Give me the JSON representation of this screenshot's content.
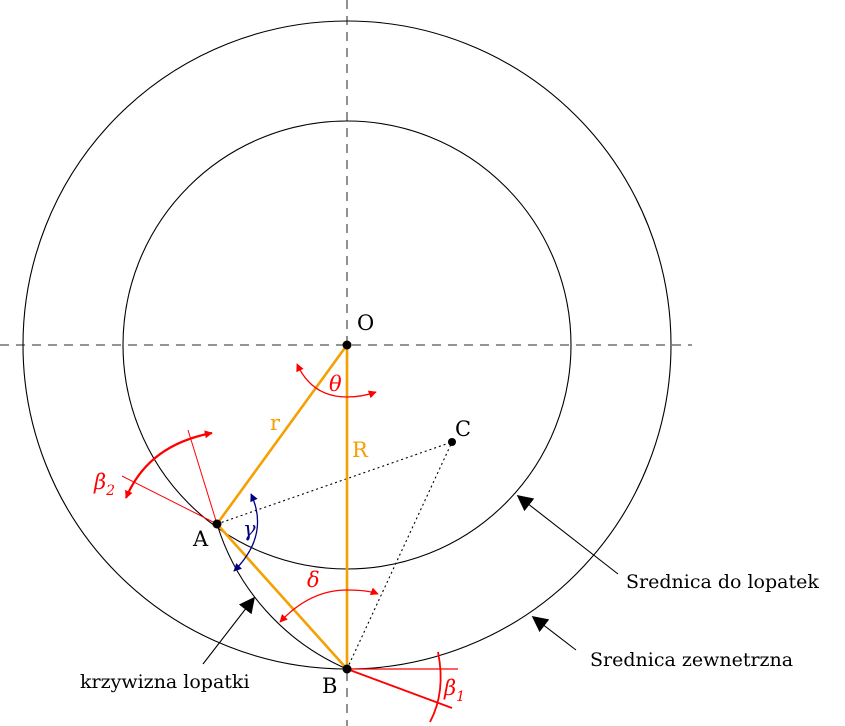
{
  "points": {
    "O": "O",
    "A": "A",
    "B": "B",
    "C": "C"
  },
  "segments": {
    "r": "r",
    "R": "R"
  },
  "angles": {
    "theta": "θ",
    "gamma": "γ",
    "delta": "δ",
    "beta1": "β",
    "beta1_sub": "1",
    "beta2": "β",
    "beta2_sub": "2"
  },
  "annotations": {
    "inner_circle": "Srednica do lopatek",
    "outer_circle": "Srednica zewnetrzna",
    "blade_curve": "krzywizna lopatki"
  },
  "colors": {
    "segments": "#f5a000",
    "angles": "#ff0000",
    "gamma": "#000080",
    "lines": "#000000"
  }
}
